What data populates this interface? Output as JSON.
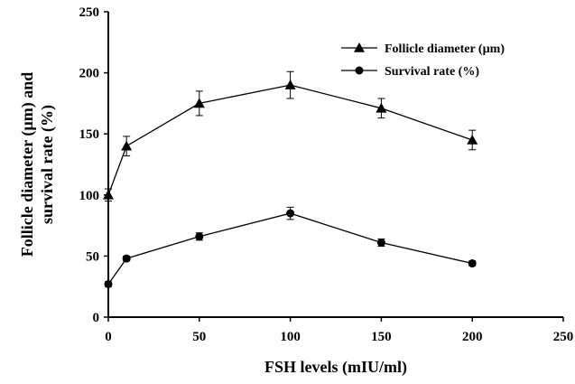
{
  "chart_data": {
    "type": "line",
    "xlabel": "FSH levels (mIU/ml)",
    "ylabel_lines": [
      "Follicle diameter (µm) and",
      "survival rate (%)"
    ],
    "xlim": [
      0,
      250
    ],
    "ylim": [
      0,
      250
    ],
    "x_ticks": [
      0,
      50,
      100,
      150,
      200,
      250
    ],
    "y_ticks": [
      0,
      50,
      100,
      150,
      200,
      250
    ],
    "grid": false,
    "legend_position": "top-right",
    "series": [
      {
        "name": "Follicle diameter (µm)",
        "marker": "triangle",
        "color": "#000000",
        "x": [
          0,
          10,
          50,
          100,
          150,
          200
        ],
        "y": [
          100,
          140,
          175,
          190,
          171,
          145
        ],
        "err": [
          5,
          8,
          10,
          11,
          8,
          8
        ]
      },
      {
        "name": "Survival rate (%)",
        "marker": "circle",
        "color": "#000000",
        "x": [
          0,
          10,
          50,
          100,
          150,
          200
        ],
        "y": [
          27,
          48,
          66,
          85,
          61,
          44
        ],
        "err": [
          2,
          2,
          3,
          5,
          3,
          2
        ]
      }
    ]
  }
}
